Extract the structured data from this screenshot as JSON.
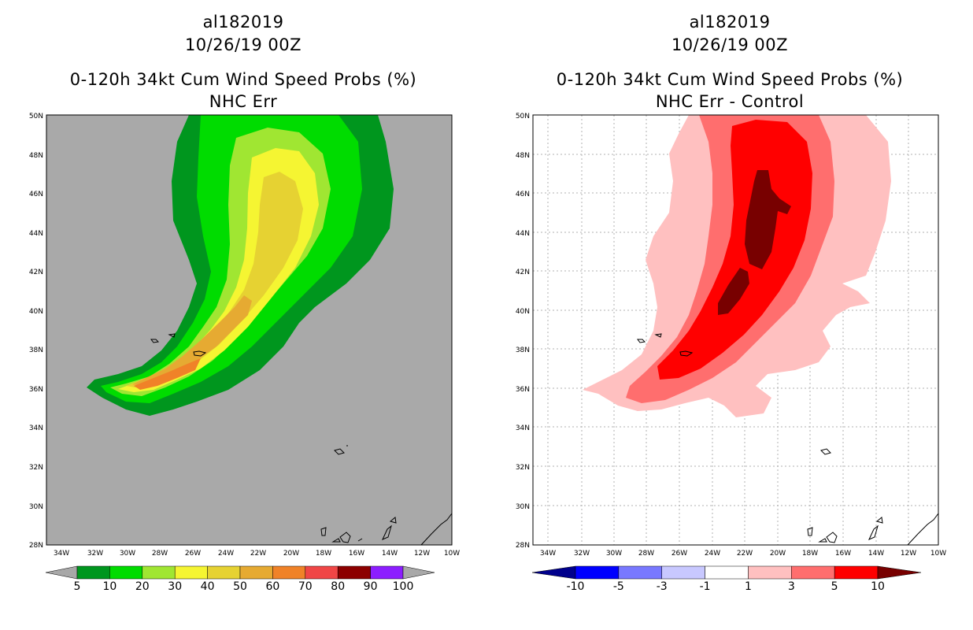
{
  "left": {
    "storm_id": "al182019",
    "date": "10/26/19 00Z",
    "product": "0-120h 34kt Cum Wind Speed Probs (%)",
    "subtitle": "NHC Err",
    "lat_labels": [
      "50N",
      "48N",
      "46N",
      "44N",
      "42N",
      "40N",
      "38N",
      "36N",
      "34N",
      "32N",
      "30N",
      "28N"
    ],
    "lon_labels": [
      "34W",
      "32W",
      "30W",
      "28W",
      "26W",
      "24W",
      "22W",
      "20W",
      "18W",
      "16W",
      "14W",
      "12W",
      "10W"
    ],
    "colorbar": {
      "labels": [
        "5",
        "10",
        "20",
        "30",
        "40",
        "50",
        "60",
        "70",
        "80",
        "90",
        "100"
      ],
      "colors": [
        "#00961e",
        "#00dc00",
        "#a0e632",
        "#f5f532",
        "#e6d232",
        "#e6aa32",
        "#f08228",
        "#f04646",
        "#8c0000",
        "#8c1eff"
      ],
      "arrow_color": "#a8a8a8"
    }
  },
  "right": {
    "storm_id": "al182019",
    "date": "10/26/19 00Z",
    "product": "0-120h 34kt Cum Wind Speed Probs (%)",
    "subtitle": "NHC Err - Control",
    "lat_labels": [
      "50N",
      "48N",
      "46N",
      "44N",
      "42N",
      "40N",
      "38N",
      "36N",
      "34N",
      "32N",
      "30N",
      "28N"
    ],
    "lon_labels": [
      "34W",
      "32W",
      "30W",
      "28W",
      "26W",
      "24W",
      "22W",
      "20W",
      "18W",
      "16W",
      "14W",
      "12W",
      "10W"
    ],
    "colorbar": {
      "labels": [
        "-10",
        "-5",
        "-3",
        "-1",
        "1",
        "3",
        "5",
        "10"
      ],
      "colors": [
        "#0000c8",
        "#0000ff",
        "#7878ff",
        "#c8c8ff",
        "#ffffff",
        "#ffc0c0",
        "#ff6e6e",
        "#ff0000"
      ],
      "low_arrow_color": "#00008c",
      "high_arrow_color": "#780000"
    }
  },
  "map_colors": {
    "background_left": "#a9a9a9",
    "background_right": "#ffffff",
    "left_fills": [
      "#00961e",
      "#00dc00",
      "#a0e632",
      "#f5f532",
      "#e6d232",
      "#e6aa32",
      "#f08228"
    ],
    "right_fills": [
      "#ffc0c0",
      "#ff6e6e",
      "#ff0000",
      "#780000"
    ]
  }
}
